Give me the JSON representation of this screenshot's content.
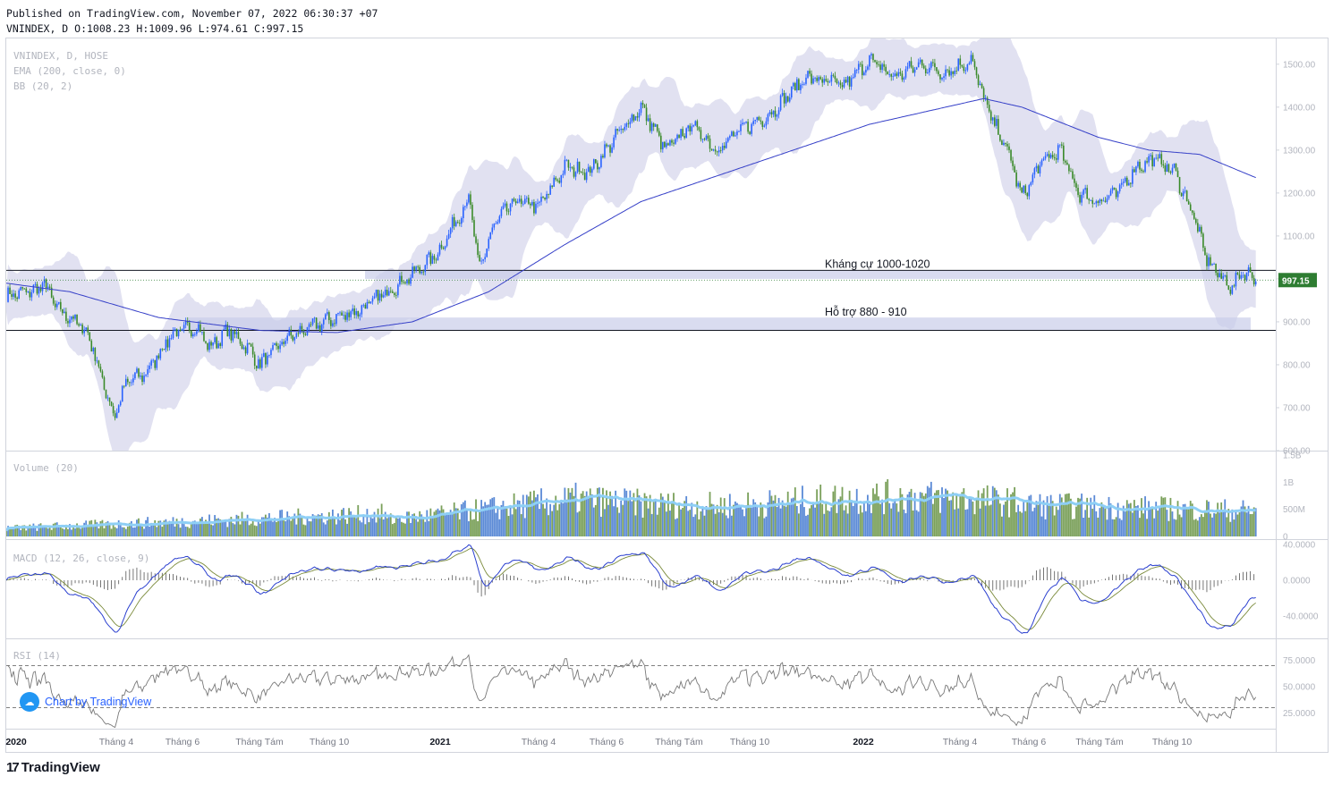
{
  "header": {
    "published": "Published on TradingView.com, November 07, 2022 06:30:37 +07",
    "ohlc": "VNINDEX, D O:1008.23 H:1009.96 L:974.61 C:997.15"
  },
  "branding": {
    "logo_text": "TradingView",
    "chart_by": "Chart by TradingView",
    "logo_icon": "tradingview-logo-icon",
    "chart_icon": "cloud-chart-icon"
  },
  "colors": {
    "up": "#2962ff",
    "down": "#3a8a2a",
    "bb_fill": "#c9c8e6",
    "ema": "#3640c8",
    "vol_ma": "#8ecff5",
    "last_price": "#2e7d32"
  },
  "chart_data": [
    {
      "type": "line",
      "pane": "price",
      "legend": [
        "VNINDEX, D, HOSE",
        "EMA (200, close, 0)",
        "BB (20, 2)"
      ],
      "yticks": [
        "1500.00",
        "1400.00",
        "1300.00",
        "1200.00",
        "1100.00",
        "1000.00",
        "900.00",
        "800.00",
        "700.00",
        "600.00"
      ],
      "ylim": [
        600,
        1560
      ],
      "xticks": [
        "2020",
        "Tháng 4",
        "Tháng 6",
        "Tháng Tám",
        "Tháng 10",
        "2021",
        "Tháng 4",
        "Tháng 6",
        "Tháng Tám",
        "Tháng 10",
        "2022",
        "Tháng 4",
        "Tháng 6",
        "Tháng Tám",
        "Tháng 10"
      ],
      "last_price_label": "997.15",
      "annotations": [
        {
          "text": "Kháng cự 1000-1020",
          "low": 1000,
          "high": 1020
        },
        {
          "text": "Hỗ trợ 880 - 910",
          "low": 880,
          "high": 910
        }
      ],
      "close_series": [
        {
          "t": 0,
          "v": 960
        },
        {
          "t": 0.025,
          "v": 975
        },
        {
          "t": 0.03,
          "v": 990
        },
        {
          "t": 0.04,
          "v": 930
        },
        {
          "t": 0.055,
          "v": 900
        },
        {
          "t": 0.065,
          "v": 870
        },
        {
          "t": 0.075,
          "v": 770
        },
        {
          "t": 0.085,
          "v": 680
        },
        {
          "t": 0.095,
          "v": 760
        },
        {
          "t": 0.11,
          "v": 780
        },
        {
          "t": 0.13,
          "v": 870
        },
        {
          "t": 0.15,
          "v": 890
        },
        {
          "t": 0.16,
          "v": 840
        },
        {
          "t": 0.175,
          "v": 880
        },
        {
          "t": 0.19,
          "v": 840
        },
        {
          "t": 0.2,
          "v": 800
        },
        {
          "t": 0.22,
          "v": 860
        },
        {
          "t": 0.25,
          "v": 900
        },
        {
          "t": 0.28,
          "v": 930
        },
        {
          "t": 0.3,
          "v": 970
        },
        {
          "t": 0.32,
          "v": 1010
        },
        {
          "t": 0.34,
          "v": 1060
        },
        {
          "t": 0.355,
          "v": 1140
        },
        {
          "t": 0.365,
          "v": 1190
        },
        {
          "t": 0.372,
          "v": 1020
        },
        {
          "t": 0.385,
          "v": 1130
        },
        {
          "t": 0.4,
          "v": 1180
        },
        {
          "t": 0.42,
          "v": 1170
        },
        {
          "t": 0.44,
          "v": 1260
        },
        {
          "t": 0.46,
          "v": 1250
        },
        {
          "t": 0.48,
          "v": 1330
        },
        {
          "t": 0.5,
          "v": 1400
        },
        {
          "t": 0.52,
          "v": 1300
        },
        {
          "t": 0.54,
          "v": 1360
        },
        {
          "t": 0.56,
          "v": 1300
        },
        {
          "t": 0.58,
          "v": 1350
        },
        {
          "t": 0.6,
          "v": 1380
        },
        {
          "t": 0.63,
          "v": 1470
        },
        {
          "t": 0.66,
          "v": 1450
        },
        {
          "t": 0.68,
          "v": 1510
        },
        {
          "t": 0.7,
          "v": 1470
        },
        {
          "t": 0.72,
          "v": 1500
        },
        {
          "t": 0.74,
          "v": 1480
        },
        {
          "t": 0.76,
          "v": 1510
        },
        {
          "t": 0.775,
          "v": 1380
        },
        {
          "t": 0.79,
          "v": 1290
        },
        {
          "t": 0.8,
          "v": 1190
        },
        {
          "t": 0.815,
          "v": 1270
        },
        {
          "t": 0.83,
          "v": 1300
        },
        {
          "t": 0.845,
          "v": 1200
        },
        {
          "t": 0.86,
          "v": 1180
        },
        {
          "t": 0.875,
          "v": 1200
        },
        {
          "t": 0.89,
          "v": 1260
        },
        {
          "t": 0.905,
          "v": 1280
        },
        {
          "t": 0.92,
          "v": 1250
        },
        {
          "t": 0.935,
          "v": 1150
        },
        {
          "t": 0.945,
          "v": 1050
        },
        {
          "t": 0.955,
          "v": 1010
        },
        {
          "t": 0.965,
          "v": 980
        },
        {
          "t": 0.975,
          "v": 1020
        },
        {
          "t": 0.985,
          "v": 997
        }
      ],
      "ema200": [
        {
          "t": 0,
          "v": 990
        },
        {
          "t": 0.05,
          "v": 970
        },
        {
          "t": 0.12,
          "v": 910
        },
        {
          "t": 0.2,
          "v": 880
        },
        {
          "t": 0.26,
          "v": 875
        },
        {
          "t": 0.32,
          "v": 900
        },
        {
          "t": 0.38,
          "v": 970
        },
        {
          "t": 0.44,
          "v": 1080
        },
        {
          "t": 0.5,
          "v": 1180
        },
        {
          "t": 0.56,
          "v": 1240
        },
        {
          "t": 0.62,
          "v": 1300
        },
        {
          "t": 0.68,
          "v": 1360
        },
        {
          "t": 0.74,
          "v": 1400
        },
        {
          "t": 0.77,
          "v": 1420
        },
        {
          "t": 0.8,
          "v": 1400
        },
        {
          "t": 0.86,
          "v": 1330
        },
        {
          "t": 0.9,
          "v": 1300
        },
        {
          "t": 0.94,
          "v": 1290
        },
        {
          "t": 0.985,
          "v": 1235
        }
      ]
    },
    {
      "type": "bar",
      "pane": "volume",
      "legend": "Volume (20)",
      "yticks": [
        "1.5B",
        "1B",
        "500M",
        "0"
      ],
      "ylim": [
        0,
        1500000000
      ]
    },
    {
      "type": "line",
      "pane": "macd",
      "legend": "MACD (12, 26, close, 9)",
      "yticks": [
        "40.0000",
        "0.0000",
        "-40.0000"
      ],
      "ylim": [
        -65,
        45
      ]
    },
    {
      "type": "line",
      "pane": "rsi",
      "legend": "RSI (14)",
      "yticks": [
        "75.0000",
        "50.0000",
        "25.0000"
      ],
      "ylim": [
        10,
        95
      ],
      "levels": [
        70,
        30
      ]
    }
  ]
}
